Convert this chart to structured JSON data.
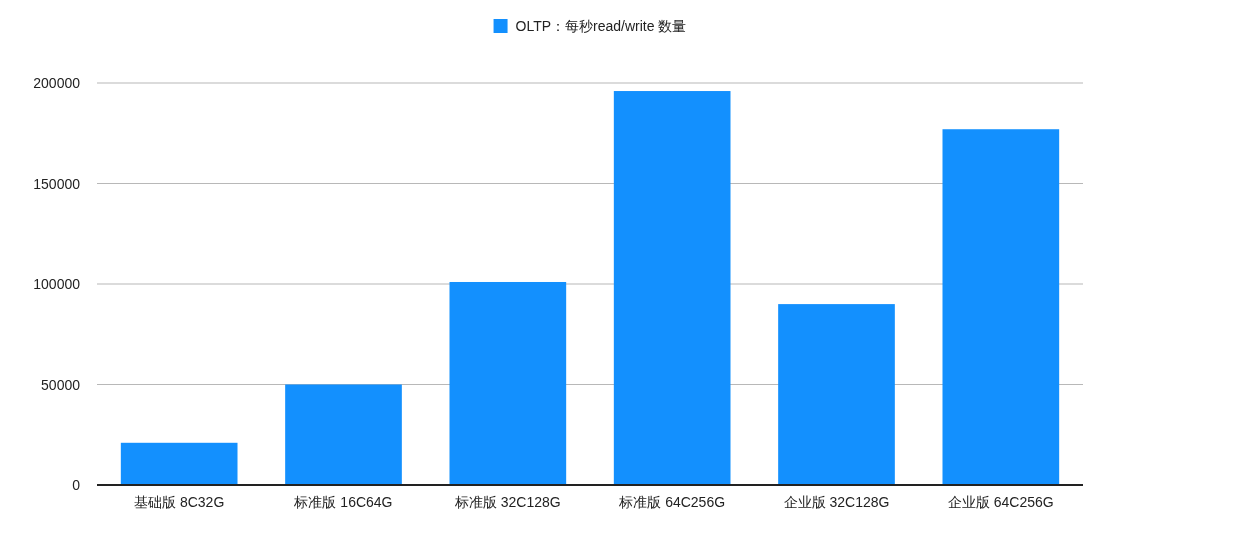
{
  "chart_data": {
    "type": "bar",
    "categories": [
      "基础版 8C32G",
      "标准版 16C64G",
      "标准版 32C128G",
      "标准版 64C256G",
      "企业版 32C128G",
      "企业版 64C256G"
    ],
    "series": [
      {
        "name": "OLTP：每秒read/write 数量",
        "color": "#1390fe",
        "values": [
          21000,
          50000,
          101000,
          196000,
          90000,
          177000
        ]
      }
    ],
    "ylim": [
      0,
      200000
    ],
    "yticks": [
      0,
      50000,
      100000,
      150000,
      200000
    ],
    "grid": "y",
    "legend": "top"
  }
}
